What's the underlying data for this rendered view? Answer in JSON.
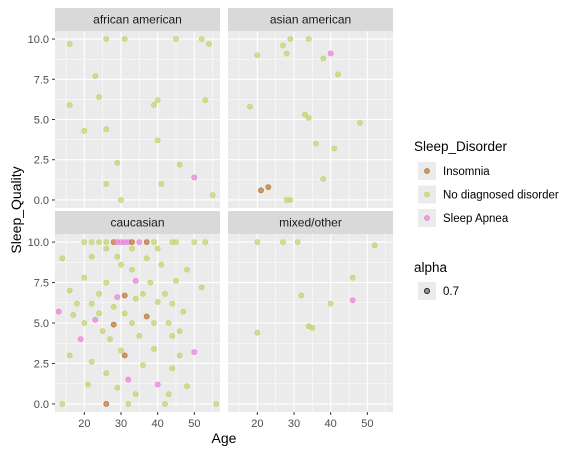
{
  "chart_data": {
    "type": "scatter",
    "xlabel": "Age",
    "ylabel": "Sleep_Quality",
    "xlim": [
      12,
      57
    ],
    "ylim": [
      -0.5,
      10.5
    ],
    "x_ticks": [
      "20",
      "30",
      "40",
      "50"
    ],
    "y_ticks": [
      "0.0",
      "2.5",
      "5.0",
      "7.5",
      "10.0"
    ],
    "grid": true,
    "point_alpha": 0.7,
    "series_colors": {
      "Insomnia": "#b87333",
      "No diagnosed disorder": "#c2d36b",
      "Sleep Apnea": "#e97fdb"
    },
    "facets": [
      {
        "name": "african american",
        "points": [
          {
            "x": 16,
            "y": 9.7,
            "s": "No diagnosed disorder"
          },
          {
            "x": 26,
            "y": 10.0,
            "s": "No diagnosed disorder"
          },
          {
            "x": 31,
            "y": 10.0,
            "s": "No diagnosed disorder"
          },
          {
            "x": 45,
            "y": 10.0,
            "s": "No diagnosed disorder"
          },
          {
            "x": 52,
            "y": 10.0,
            "s": "No diagnosed disorder"
          },
          {
            "x": 54,
            "y": 9.7,
            "s": "No diagnosed disorder"
          },
          {
            "x": 23,
            "y": 7.7,
            "s": "No diagnosed disorder"
          },
          {
            "x": 24,
            "y": 6.4,
            "s": "No diagnosed disorder"
          },
          {
            "x": 16,
            "y": 5.9,
            "s": "No diagnosed disorder"
          },
          {
            "x": 39,
            "y": 5.9,
            "s": "No diagnosed disorder"
          },
          {
            "x": 40,
            "y": 6.2,
            "s": "No diagnosed disorder"
          },
          {
            "x": 53,
            "y": 6.2,
            "s": "No diagnosed disorder"
          },
          {
            "x": 26,
            "y": 4.4,
            "s": "No diagnosed disorder"
          },
          {
            "x": 20,
            "y": 4.3,
            "s": "No diagnosed disorder"
          },
          {
            "x": 40,
            "y": 3.7,
            "s": "No diagnosed disorder"
          },
          {
            "x": 29,
            "y": 2.3,
            "s": "No diagnosed disorder"
          },
          {
            "x": 46,
            "y": 2.2,
            "s": "No diagnosed disorder"
          },
          {
            "x": 26,
            "y": 1.0,
            "s": "No diagnosed disorder"
          },
          {
            "x": 41,
            "y": 1.0,
            "s": "No diagnosed disorder"
          },
          {
            "x": 50,
            "y": 1.4,
            "s": "Sleep Apnea"
          },
          {
            "x": 30,
            "y": 0.0,
            "s": "No diagnosed disorder"
          },
          {
            "x": 55,
            "y": 0.3,
            "s": "No diagnosed disorder"
          }
        ]
      },
      {
        "name": "asian american",
        "points": [
          {
            "x": 29,
            "y": 10.0,
            "s": "No diagnosed disorder"
          },
          {
            "x": 34,
            "y": 10.0,
            "s": "No diagnosed disorder"
          },
          {
            "x": 27,
            "y": 9.6,
            "s": "No diagnosed disorder"
          },
          {
            "x": 20,
            "y": 9.0,
            "s": "No diagnosed disorder"
          },
          {
            "x": 28,
            "y": 9.1,
            "s": "No diagnosed disorder"
          },
          {
            "x": 40,
            "y": 9.1,
            "s": "Sleep Apnea"
          },
          {
            "x": 38,
            "y": 8.8,
            "s": "No diagnosed disorder"
          },
          {
            "x": 42,
            "y": 7.8,
            "s": "No diagnosed disorder"
          },
          {
            "x": 18,
            "y": 5.8,
            "s": "No diagnosed disorder"
          },
          {
            "x": 33,
            "y": 5.3,
            "s": "No diagnosed disorder"
          },
          {
            "x": 34,
            "y": 5.1,
            "s": "No diagnosed disorder"
          },
          {
            "x": 48,
            "y": 4.8,
            "s": "No diagnosed disorder"
          },
          {
            "x": 36,
            "y": 3.5,
            "s": "No diagnosed disorder"
          },
          {
            "x": 41,
            "y": 3.2,
            "s": "No diagnosed disorder"
          },
          {
            "x": 38,
            "y": 1.3,
            "s": "No diagnosed disorder"
          },
          {
            "x": 21,
            "y": 0.6,
            "s": "Insomnia"
          },
          {
            "x": 23,
            "y": 0.8,
            "s": "Insomnia"
          },
          {
            "x": 28,
            "y": 0.0,
            "s": "No diagnosed disorder"
          },
          {
            "x": 29,
            "y": 0.0,
            "s": "No diagnosed disorder"
          }
        ]
      },
      {
        "name": "caucasian",
        "points": [
          {
            "x": 14,
            "y": 9.0,
            "s": "No diagnosed disorder"
          },
          {
            "x": 20,
            "y": 10.0,
            "s": "No diagnosed disorder"
          },
          {
            "x": 22,
            "y": 10.0,
            "s": "No diagnosed disorder"
          },
          {
            "x": 24,
            "y": 10.0,
            "s": "No diagnosed disorder"
          },
          {
            "x": 26,
            "y": 10.0,
            "s": "No diagnosed disorder"
          },
          {
            "x": 28,
            "y": 10.0,
            "s": "Insomnia"
          },
          {
            "x": 29,
            "y": 10.0,
            "s": "Sleep Apnea"
          },
          {
            "x": 30,
            "y": 10.0,
            "s": "Sleep Apnea"
          },
          {
            "x": 31,
            "y": 10.0,
            "s": "Sleep Apnea"
          },
          {
            "x": 32,
            "y": 10.0,
            "s": "Sleep Apnea"
          },
          {
            "x": 33,
            "y": 10.0,
            "s": "Insomnia"
          },
          {
            "x": 35,
            "y": 10.0,
            "s": "Sleep Apnea"
          },
          {
            "x": 37,
            "y": 10.0,
            "s": "Insomnia"
          },
          {
            "x": 39,
            "y": 10.0,
            "s": "No diagnosed disorder"
          },
          {
            "x": 44,
            "y": 10.0,
            "s": "No diagnosed disorder"
          },
          {
            "x": 45,
            "y": 10.0,
            "s": "No diagnosed disorder"
          },
          {
            "x": 50,
            "y": 10.0,
            "s": "No diagnosed disorder"
          },
          {
            "x": 53,
            "y": 10.0,
            "s": "No diagnosed disorder"
          },
          {
            "x": 26,
            "y": 9.6,
            "s": "No diagnosed disorder"
          },
          {
            "x": 33,
            "y": 9.6,
            "s": "No diagnosed disorder"
          },
          {
            "x": 40,
            "y": 9.6,
            "s": "No diagnosed disorder"
          },
          {
            "x": 22,
            "y": 9.1,
            "s": "No diagnosed disorder"
          },
          {
            "x": 29,
            "y": 9.1,
            "s": "No diagnosed disorder"
          },
          {
            "x": 37,
            "y": 9.0,
            "s": "No diagnosed disorder"
          },
          {
            "x": 30,
            "y": 8.6,
            "s": "No diagnosed disorder"
          },
          {
            "x": 41,
            "y": 8.6,
            "s": "No diagnosed disorder"
          },
          {
            "x": 33,
            "y": 8.3,
            "s": "No diagnosed disorder"
          },
          {
            "x": 48,
            "y": 8.3,
            "s": "No diagnosed disorder"
          },
          {
            "x": 20,
            "y": 7.8,
            "s": "No diagnosed disorder"
          },
          {
            "x": 26,
            "y": 7.5,
            "s": "No diagnosed disorder"
          },
          {
            "x": 34,
            "y": 7.6,
            "s": "Sleep Apnea"
          },
          {
            "x": 38,
            "y": 7.5,
            "s": "No diagnosed disorder"
          },
          {
            "x": 45,
            "y": 7.6,
            "s": "No diagnosed disorder"
          },
          {
            "x": 16,
            "y": 7.0,
            "s": "No diagnosed disorder"
          },
          {
            "x": 24,
            "y": 6.8,
            "s": "No diagnosed disorder"
          },
          {
            "x": 29,
            "y": 6.6,
            "s": "Sleep Apnea"
          },
          {
            "x": 31,
            "y": 6.7,
            "s": "Insomnia"
          },
          {
            "x": 34,
            "y": 6.5,
            "s": "No diagnosed disorder"
          },
          {
            "x": 36,
            "y": 6.8,
            "s": "No diagnosed disorder"
          },
          {
            "x": 42,
            "y": 6.8,
            "s": "No diagnosed disorder"
          },
          {
            "x": 52,
            "y": 7.2,
            "s": "No diagnosed disorder"
          },
          {
            "x": 18,
            "y": 6.2,
            "s": "No diagnosed disorder"
          },
          {
            "x": 22,
            "y": 6.2,
            "s": "No diagnosed disorder"
          },
          {
            "x": 28,
            "y": 6.0,
            "s": "No diagnosed disorder"
          },
          {
            "x": 40,
            "y": 6.3,
            "s": "No diagnosed disorder"
          },
          {
            "x": 44,
            "y": 6.2,
            "s": "No diagnosed disorder"
          },
          {
            "x": 17,
            "y": 5.5,
            "s": "No diagnosed disorder"
          },
          {
            "x": 13,
            "y": 5.7,
            "s": "Sleep Apnea"
          },
          {
            "x": 24,
            "y": 5.6,
            "s": "No diagnosed disorder"
          },
          {
            "x": 31,
            "y": 5.6,
            "s": "No diagnosed disorder"
          },
          {
            "x": 37,
            "y": 5.4,
            "s": "Insomnia"
          },
          {
            "x": 47,
            "y": 5.7,
            "s": "No diagnosed disorder"
          },
          {
            "x": 20,
            "y": 5.0,
            "s": "No diagnosed disorder"
          },
          {
            "x": 23,
            "y": 5.2,
            "s": "Sleep Apnea"
          },
          {
            "x": 28,
            "y": 4.9,
            "s": "Insomnia"
          },
          {
            "x": 33,
            "y": 5.0,
            "s": "No diagnosed disorder"
          },
          {
            "x": 39,
            "y": 5.0,
            "s": "No diagnosed disorder"
          },
          {
            "x": 43,
            "y": 5.0,
            "s": "No diagnosed disorder"
          },
          {
            "x": 46,
            "y": 4.5,
            "s": "No diagnosed disorder"
          },
          {
            "x": 25,
            "y": 4.5,
            "s": "No diagnosed disorder"
          },
          {
            "x": 35,
            "y": 4.2,
            "s": "No diagnosed disorder"
          },
          {
            "x": 19,
            "y": 4.0,
            "s": "Sleep Apnea"
          },
          {
            "x": 27,
            "y": 4.0,
            "s": "No diagnosed disorder"
          },
          {
            "x": 44,
            "y": 4.2,
            "s": "No diagnosed disorder"
          },
          {
            "x": 30,
            "y": 3.3,
            "s": "No diagnosed disorder"
          },
          {
            "x": 31,
            "y": 3.0,
            "s": "Insomnia"
          },
          {
            "x": 39,
            "y": 3.4,
            "s": "No diagnosed disorder"
          },
          {
            "x": 16,
            "y": 3.0,
            "s": "No diagnosed disorder"
          },
          {
            "x": 46,
            "y": 3.0,
            "s": "No diagnosed disorder"
          },
          {
            "x": 50,
            "y": 3.2,
            "s": "Sleep Apnea"
          },
          {
            "x": 22,
            "y": 2.6,
            "s": "No diagnosed disorder"
          },
          {
            "x": 36,
            "y": 2.4,
            "s": "No diagnosed disorder"
          },
          {
            "x": 44,
            "y": 2.2,
            "s": "No diagnosed disorder"
          },
          {
            "x": 26,
            "y": 1.9,
            "s": "No diagnosed disorder"
          },
          {
            "x": 32,
            "y": 1.5,
            "s": "Sleep Apnea"
          },
          {
            "x": 21,
            "y": 1.2,
            "s": "No diagnosed disorder"
          },
          {
            "x": 29,
            "y": 1.0,
            "s": "No diagnosed disorder"
          },
          {
            "x": 40,
            "y": 1.2,
            "s": "Sleep Apnea"
          },
          {
            "x": 48,
            "y": 1.1,
            "s": "No diagnosed disorder"
          },
          {
            "x": 34,
            "y": 0.6,
            "s": "No diagnosed disorder"
          },
          {
            "x": 43,
            "y": 0.6,
            "s": "No diagnosed disorder"
          },
          {
            "x": 14,
            "y": 0.0,
            "s": "No diagnosed disorder"
          },
          {
            "x": 26,
            "y": 0.0,
            "s": "Insomnia"
          },
          {
            "x": 32,
            "y": 0.0,
            "s": "No diagnosed disorder"
          },
          {
            "x": 42,
            "y": 0.0,
            "s": "No diagnosed disorder"
          },
          {
            "x": 56,
            "y": 0.0,
            "s": "No diagnosed disorder"
          }
        ]
      },
      {
        "name": "mixed/other",
        "points": [
          {
            "x": 20,
            "y": 10.0,
            "s": "No diagnosed disorder"
          },
          {
            "x": 27,
            "y": 10.0,
            "s": "No diagnosed disorder"
          },
          {
            "x": 31,
            "y": 10.0,
            "s": "No diagnosed disorder"
          },
          {
            "x": 52,
            "y": 9.8,
            "s": "No diagnosed disorder"
          },
          {
            "x": 46,
            "y": 7.8,
            "s": "No diagnosed disorder"
          },
          {
            "x": 32,
            "y": 6.7,
            "s": "No diagnosed disorder"
          },
          {
            "x": 40,
            "y": 6.2,
            "s": "No diagnosed disorder"
          },
          {
            "x": 46,
            "y": 6.4,
            "s": "Sleep Apnea"
          },
          {
            "x": 34,
            "y": 4.8,
            "s": "No diagnosed disorder"
          },
          {
            "x": 35,
            "y": 4.7,
            "s": "No diagnosed disorder"
          },
          {
            "x": 20,
            "y": 4.4,
            "s": "No diagnosed disorder"
          }
        ]
      }
    ],
    "legend": {
      "title": "Sleep_Disorder",
      "placement": "right",
      "items": [
        "Insomnia",
        "No diagnosed disorder",
        "Sleep Apnea"
      ]
    },
    "alpha_legend": {
      "title": "alpha",
      "items": [
        "0.7"
      ]
    }
  }
}
